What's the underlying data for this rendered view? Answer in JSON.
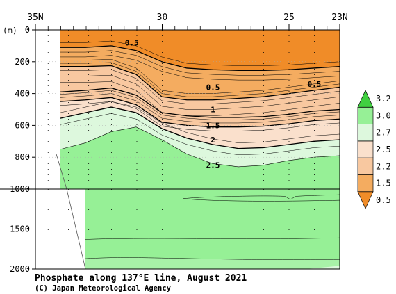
{
  "chart_data": {
    "type": "heatmap",
    "title": "Phosphate along 137°E line, August 2021",
    "credit": "(C) Japan Meteorological Agency",
    "y_unit": "(m)",
    "x_tick_labels": [
      "35N",
      "30",
      "25",
      "23N"
    ],
    "x_ticks_lat": [
      35,
      30,
      25,
      23
    ],
    "x_range_lat": [
      35,
      23
    ],
    "y_upper_ticks": [
      0,
      200,
      400,
      600,
      800,
      1000
    ],
    "y_lower_ticks": [
      1500,
      2000
    ],
    "y_upper_range_m": [
      0,
      1000
    ],
    "y_lower_range_m": [
      1000,
      2000
    ],
    "station_lats": [
      34.5,
      33.7,
      32.9,
      32.0,
      31.0,
      30.0,
      28.0,
      26.0,
      25.0,
      24.0
    ],
    "contour_labels": [
      {
        "text": "0.5",
        "lat": 31.2,
        "depth": 80
      },
      {
        "text": "0.5",
        "lat": 28.0,
        "depth": 360
      },
      {
        "text": "0.5",
        "lat": 24.0,
        "depth": 340
      },
      {
        "text": "1",
        "lat": 28.0,
        "depth": 500
      },
      {
        "text": "1.5",
        "lat": 28.0,
        "depth": 600
      },
      {
        "text": "2",
        "lat": 28.0,
        "depth": 690
      },
      {
        "text": "2.5",
        "lat": 28.0,
        "depth": 850
      }
    ],
    "levels": [
      {
        "label": "0.5",
        "color": "#F08C28"
      },
      {
        "label": "1.5",
        "color": "#F4AC60"
      },
      {
        "label": "2.2",
        "color": "#F8C8A0"
      },
      {
        "label": "2.5",
        "color": "#FAE0CC"
      },
      {
        "label": "2.7",
        "color": "#DDF8DD"
      },
      {
        "label": "3.0",
        "color": "#96F096"
      },
      {
        "label": "3.2",
        "color": "#40D040"
      }
    ],
    "colors": {
      "orange": "#F08C28",
      "orange_light": "#F4AC60",
      "peach": "#F8C8A0",
      "peach_light": "#FAE0CC",
      "pale_green": "#DDF8DD",
      "light_green": "#B0F0B0",
      "green": "#96F096",
      "dark_green": "#40D040"
    }
  }
}
